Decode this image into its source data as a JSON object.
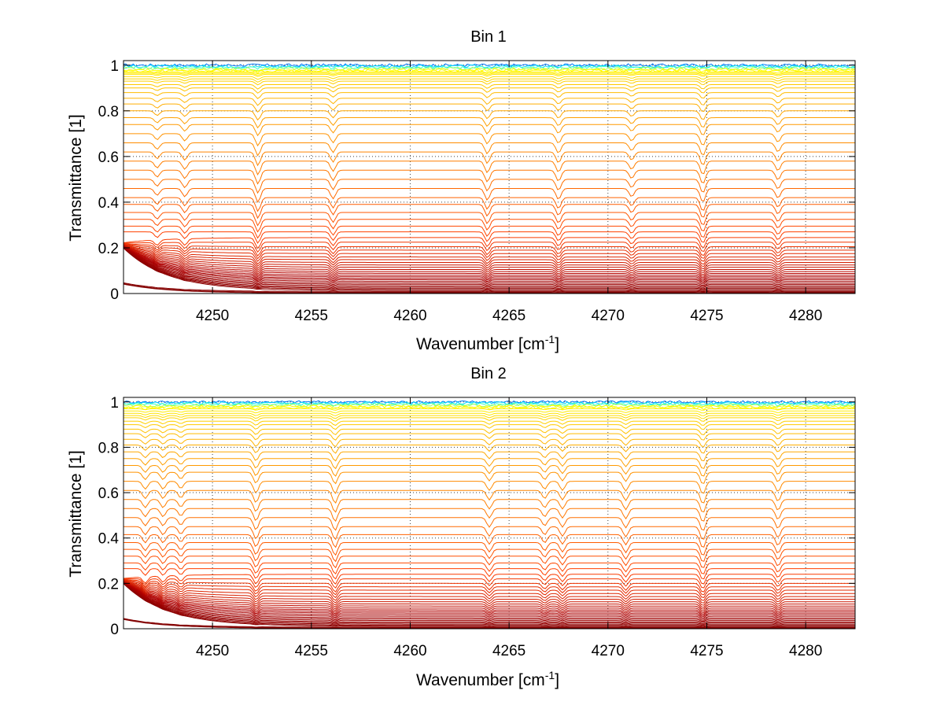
{
  "chart_data": [
    {
      "type": "line",
      "title": "Bin 1",
      "xlabel": "Wavenumber [cm",
      "xlabel_sup": "-1",
      "xlabel_end": "]",
      "ylabel": "Transmittance [1]",
      "xlim": [
        4245.5,
        4282.5
      ],
      "ylim": [
        0,
        1.02
      ],
      "xticks": [
        4250,
        4255,
        4260,
        4265,
        4270,
        4275,
        4280
      ],
      "yticks": [
        0,
        0.2,
        0.4,
        0.6,
        0.8,
        1
      ],
      "ytick_labels": [
        "0",
        "0.2",
        "0.4",
        "0.6",
        "0.8",
        "1"
      ],
      "grid": true,
      "colormap": [
        "#00008f",
        "#0000ff",
        "#00a0ff",
        "#00ffff",
        "#80ff80",
        "#ffff00",
        "#ffa000",
        "#ff4000",
        "#b00000",
        "#800000"
      ],
      "absorption_lines": [
        {
          "x": 4247.2,
          "depth": 0.5
        },
        {
          "x": 4248.6,
          "depth": 0.6
        },
        {
          "x": 4252.3,
          "depth": 1.0
        },
        {
          "x": 4256.1,
          "depth": 0.75
        },
        {
          "x": 4263.9,
          "depth": 0.85
        },
        {
          "x": 4267.5,
          "depth": 0.8
        },
        {
          "x": 4271.2,
          "depth": 0.6
        },
        {
          "x": 4274.8,
          "depth": 1.0
        },
        {
          "x": 4278.6,
          "depth": 0.7
        }
      ],
      "series_levels": [
        1.0,
        0.995,
        0.99,
        0.985,
        0.98,
        0.975,
        0.97,
        0.965,
        0.96,
        0.95,
        0.94,
        0.93,
        0.915,
        0.9,
        0.88,
        0.855,
        0.83,
        0.8,
        0.77,
        0.74,
        0.7,
        0.66,
        0.62,
        0.58,
        0.54,
        0.5,
        0.46,
        0.42,
        0.39,
        0.355,
        0.325,
        0.295,
        0.27,
        0.245,
        0.225,
        0.205,
        0.19,
        0.175,
        0.16,
        0.148,
        0.136,
        0.125,
        0.115,
        0.105,
        0.096,
        0.088,
        0.08,
        0.073,
        0.066,
        0.06,
        0.053,
        0.046,
        0.04,
        0.034,
        0.028,
        0.023,
        0.018,
        0.013,
        0.009,
        0.005,
        0.002
      ]
    },
    {
      "type": "line",
      "title": "Bin 2",
      "xlabel": "Wavenumber [cm",
      "xlabel_sup": "-1",
      "xlabel_end": "]",
      "ylabel": "Transmittance [1]",
      "xlim": [
        4245.5,
        4282.5
      ],
      "ylim": [
        0,
        1.02
      ],
      "xticks": [
        4250,
        4255,
        4260,
        4265,
        4270,
        4275,
        4280
      ],
      "yticks": [
        0,
        0.2,
        0.4,
        0.6,
        0.8,
        1
      ],
      "ytick_labels": [
        "0",
        "0.2",
        "0.4",
        "0.6",
        "0.8",
        "1"
      ],
      "grid": true,
      "colormap": [
        "#00008f",
        "#0000ff",
        "#00a0ff",
        "#00ffff",
        "#80ff80",
        "#ffff00",
        "#ffa000",
        "#ff4000",
        "#b00000",
        "#800000"
      ],
      "absorption_lines": [
        {
          "x": 4246.6,
          "depth": 0.6
        },
        {
          "x": 4247.5,
          "depth": 0.6
        },
        {
          "x": 4248.4,
          "depth": 0.55
        },
        {
          "x": 4252.2,
          "depth": 0.9
        },
        {
          "x": 4256.2,
          "depth": 0.95
        },
        {
          "x": 4264.0,
          "depth": 0.7
        },
        {
          "x": 4266.8,
          "depth": 0.6
        },
        {
          "x": 4267.7,
          "depth": 0.7
        },
        {
          "x": 4270.9,
          "depth": 0.75
        },
        {
          "x": 4274.8,
          "depth": 1.0
        },
        {
          "x": 4278.6,
          "depth": 0.8
        }
      ],
      "series_levels": [
        1.0,
        0.995,
        0.99,
        0.985,
        0.98,
        0.975,
        0.97,
        0.96,
        0.95,
        0.94,
        0.93,
        0.915,
        0.9,
        0.88,
        0.86,
        0.835,
        0.81,
        0.78,
        0.75,
        0.72,
        0.69,
        0.65,
        0.61,
        0.57,
        0.53,
        0.49,
        0.45,
        0.415,
        0.38,
        0.35,
        0.32,
        0.29,
        0.265,
        0.24,
        0.22,
        0.2,
        0.185,
        0.17,
        0.155,
        0.142,
        0.13,
        0.119,
        0.109,
        0.1,
        0.091,
        0.083,
        0.076,
        0.069,
        0.062,
        0.055,
        0.048,
        0.042,
        0.036,
        0.03,
        0.025,
        0.02,
        0.015,
        0.011,
        0.007,
        0.004,
        0.002
      ]
    }
  ]
}
